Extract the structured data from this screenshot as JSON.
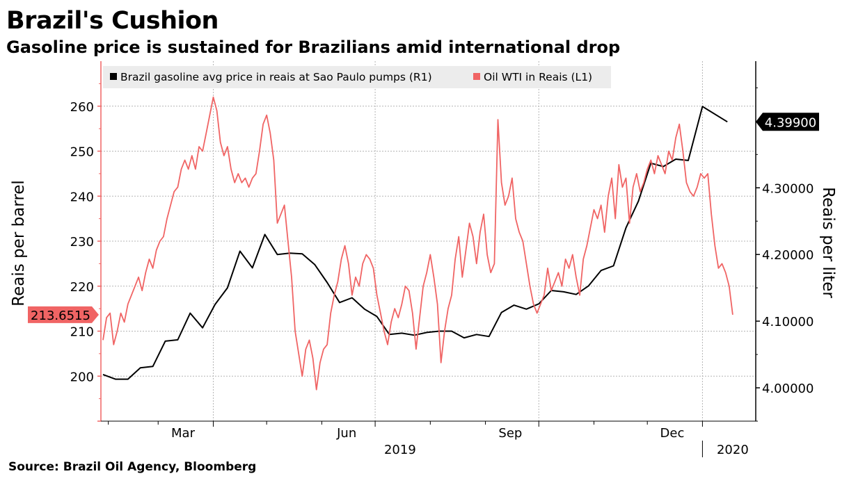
{
  "header": {
    "title": "Brazil's Cushion",
    "subtitle": "Gasoline price is sustained for Brazilians amid international drop"
  },
  "footer": {
    "source": "Source: Brazil Oil Agency, Bloomberg"
  },
  "colors": {
    "gasoline": "#000000",
    "oil": "#f06464",
    "grid": "#b4b4b4"
  },
  "chart_data": {
    "type": "line",
    "x_axis": {
      "month_labels": [
        "Mar",
        "Jun",
        "Sep",
        "Dec"
      ],
      "year_labels": [
        "2019",
        "2020"
      ],
      "range": [
        "2019-01-29",
        "2020-01-29"
      ]
    },
    "left_axis": {
      "label": "Reais per barrel",
      "ticks": [
        200,
        210,
        220,
        230,
        240,
        250,
        260
      ],
      "tick_labels": [
        "200",
        "210",
        "220",
        "230",
        "240",
        "250",
        "260"
      ],
      "range": [
        190,
        270
      ]
    },
    "right_axis": {
      "label": "Reais per liter",
      "ticks": [
        4.0,
        4.1,
        4.2,
        4.3
      ],
      "tick_labels": [
        "4.00000",
        "4.10000",
        "4.20000",
        "4.30000"
      ],
      "range": [
        3.95,
        4.49
      ]
    },
    "grid": true,
    "legend": {
      "position": "top-left",
      "items": [
        {
          "label": "Brazil gasoline avg price in reais at Sao Paulo pumps (R1)",
          "series": "gasoline"
        },
        {
          "label": "Oil WTI in Reais (L1)",
          "series": "oil"
        }
      ]
    },
    "last_value_labels": {
      "gasoline": "4.39900",
      "oil": "213.6515"
    },
    "series": [
      {
        "name": "Brazil gasoline avg price in reais at Sao Paulo pumps (R1)",
        "key": "gasoline",
        "axis": "right",
        "points": [
          [
            "2019-01-29",
            4.02
          ],
          [
            "2019-02-05",
            4.013
          ],
          [
            "2019-02-12",
            4.013
          ],
          [
            "2019-02-19",
            4.03
          ],
          [
            "2019-02-26",
            4.032
          ],
          [
            "2019-03-05",
            4.07
          ],
          [
            "2019-03-12",
            4.072
          ],
          [
            "2019-03-19",
            4.112
          ],
          [
            "2019-03-26",
            4.09
          ],
          [
            "2019-04-02",
            4.125
          ],
          [
            "2019-04-09",
            4.15
          ],
          [
            "2019-04-16",
            4.205
          ],
          [
            "2019-04-23",
            4.18
          ],
          [
            "2019-04-30",
            4.23
          ],
          [
            "2019-05-07",
            4.2
          ],
          [
            "2019-05-14",
            4.202
          ],
          [
            "2019-05-21",
            4.201
          ],
          [
            "2019-05-28",
            4.185
          ],
          [
            "2019-06-04",
            4.158
          ],
          [
            "2019-06-11",
            4.128
          ],
          [
            "2019-06-18",
            4.135
          ],
          [
            "2019-06-25",
            4.118
          ],
          [
            "2019-07-02",
            4.107
          ],
          [
            "2019-07-09",
            4.08
          ],
          [
            "2019-07-16",
            4.082
          ],
          [
            "2019-07-23",
            4.079
          ],
          [
            "2019-07-30",
            4.083
          ],
          [
            "2019-08-06",
            4.085
          ],
          [
            "2019-08-13",
            4.085
          ],
          [
            "2019-08-20",
            4.075
          ],
          [
            "2019-08-27",
            4.08
          ],
          [
            "2019-09-03",
            4.077
          ],
          [
            "2019-09-10",
            4.113
          ],
          [
            "2019-09-17",
            4.124
          ],
          [
            "2019-09-24",
            4.118
          ],
          [
            "2019-10-01",
            4.126
          ],
          [
            "2019-10-08",
            4.146
          ],
          [
            "2019-10-15",
            4.144
          ],
          [
            "2019-10-22",
            4.14
          ],
          [
            "2019-10-29",
            4.153
          ],
          [
            "2019-11-05",
            4.176
          ],
          [
            "2019-11-12",
            4.183
          ],
          [
            "2019-11-19",
            4.24
          ],
          [
            "2019-11-26",
            4.28
          ],
          [
            "2019-12-03",
            4.337
          ],
          [
            "2019-12-10",
            4.332
          ],
          [
            "2019-12-17",
            4.343
          ],
          [
            "2019-12-24",
            4.341
          ],
          [
            "2020-01-01",
            4.422
          ],
          [
            "2020-01-15",
            4.399
          ]
        ]
      },
      {
        "name": "Oil WTI in Reais (L1)",
        "key": "oil",
        "axis": "left",
        "points": [
          [
            "2019-01-29",
            208
          ],
          [
            "2019-01-31",
            213
          ],
          [
            "2019-02-02",
            214
          ],
          [
            "2019-02-04",
            207
          ],
          [
            "2019-02-06",
            210
          ],
          [
            "2019-02-08",
            214
          ],
          [
            "2019-02-10",
            212
          ],
          [
            "2019-02-12",
            216
          ],
          [
            "2019-02-14",
            218
          ],
          [
            "2019-02-16",
            220
          ],
          [
            "2019-02-18",
            222
          ],
          [
            "2019-02-20",
            219
          ],
          [
            "2019-02-22",
            223
          ],
          [
            "2019-02-24",
            226
          ],
          [
            "2019-02-26",
            224
          ],
          [
            "2019-02-28",
            228
          ],
          [
            "2019-03-02",
            230
          ],
          [
            "2019-03-04",
            231
          ],
          [
            "2019-03-06",
            235
          ],
          [
            "2019-03-08",
            238
          ],
          [
            "2019-03-10",
            241
          ],
          [
            "2019-03-12",
            242
          ],
          [
            "2019-03-14",
            246
          ],
          [
            "2019-03-16",
            248
          ],
          [
            "2019-03-18",
            246
          ],
          [
            "2019-03-20",
            249
          ],
          [
            "2019-03-22",
            246
          ],
          [
            "2019-03-24",
            251
          ],
          [
            "2019-03-26",
            250
          ],
          [
            "2019-03-28",
            254
          ],
          [
            "2019-03-30",
            258
          ],
          [
            "2019-04-01",
            262
          ],
          [
            "2019-04-03",
            259
          ],
          [
            "2019-04-05",
            252
          ],
          [
            "2019-04-07",
            249
          ],
          [
            "2019-04-09",
            251
          ],
          [
            "2019-04-11",
            246
          ],
          [
            "2019-04-13",
            243
          ],
          [
            "2019-04-15",
            245
          ],
          [
            "2019-04-17",
            243
          ],
          [
            "2019-04-19",
            244
          ],
          [
            "2019-04-21",
            242
          ],
          [
            "2019-04-23",
            244
          ],
          [
            "2019-04-25",
            245
          ],
          [
            "2019-04-27",
            250
          ],
          [
            "2019-04-29",
            256
          ],
          [
            "2019-05-01",
            258
          ],
          [
            "2019-05-03",
            254
          ],
          [
            "2019-05-05",
            248
          ],
          [
            "2019-05-07",
            234
          ],
          [
            "2019-05-09",
            236
          ],
          [
            "2019-05-11",
            238
          ],
          [
            "2019-05-13",
            230
          ],
          [
            "2019-05-15",
            222
          ],
          [
            "2019-05-17",
            210
          ],
          [
            "2019-05-19",
            205
          ],
          [
            "2019-05-21",
            200
          ],
          [
            "2019-05-23",
            206
          ],
          [
            "2019-05-25",
            208
          ],
          [
            "2019-05-27",
            204
          ],
          [
            "2019-05-29",
            197
          ],
          [
            "2019-05-31",
            203
          ],
          [
            "2019-06-02",
            206
          ],
          [
            "2019-06-04",
            207
          ],
          [
            "2019-06-06",
            214
          ],
          [
            "2019-06-08",
            218
          ],
          [
            "2019-06-10",
            221
          ],
          [
            "2019-06-12",
            226
          ],
          [
            "2019-06-14",
            229
          ],
          [
            "2019-06-16",
            225
          ],
          [
            "2019-06-18",
            218
          ],
          [
            "2019-06-20",
            222
          ],
          [
            "2019-06-22",
            220
          ],
          [
            "2019-06-24",
            225
          ],
          [
            "2019-06-26",
            227
          ],
          [
            "2019-06-28",
            226
          ],
          [
            "2019-06-30",
            224
          ],
          [
            "2019-07-02",
            218
          ],
          [
            "2019-07-04",
            214
          ],
          [
            "2019-07-06",
            210
          ],
          [
            "2019-07-08",
            207
          ],
          [
            "2019-07-10",
            212
          ],
          [
            "2019-07-12",
            215
          ],
          [
            "2019-07-14",
            213
          ],
          [
            "2019-07-16",
            216
          ],
          [
            "2019-07-18",
            220
          ],
          [
            "2019-07-20",
            219
          ],
          [
            "2019-07-22",
            214
          ],
          [
            "2019-07-24",
            206
          ],
          [
            "2019-07-26",
            213
          ],
          [
            "2019-07-28",
            220
          ],
          [
            "2019-07-30",
            223
          ],
          [
            "2019-08-01",
            227
          ],
          [
            "2019-08-03",
            222
          ],
          [
            "2019-08-05",
            216
          ],
          [
            "2019-08-07",
            203
          ],
          [
            "2019-08-09",
            210
          ],
          [
            "2019-08-11",
            215
          ],
          [
            "2019-08-13",
            218
          ],
          [
            "2019-08-15",
            226
          ],
          [
            "2019-08-17",
            231
          ],
          [
            "2019-08-19",
            222
          ],
          [
            "2019-08-21",
            228
          ],
          [
            "2019-08-23",
            234
          ],
          [
            "2019-08-25",
            231
          ],
          [
            "2019-08-27",
            225
          ],
          [
            "2019-08-29",
            232
          ],
          [
            "2019-08-31",
            236
          ],
          [
            "2019-09-02",
            227
          ],
          [
            "2019-09-04",
            223
          ],
          [
            "2019-09-06",
            225
          ],
          [
            "2019-09-08",
            257
          ],
          [
            "2019-09-10",
            243
          ],
          [
            "2019-09-12",
            238
          ],
          [
            "2019-09-14",
            240
          ],
          [
            "2019-09-16",
            244
          ],
          [
            "2019-09-18",
            235
          ],
          [
            "2019-09-20",
            232
          ],
          [
            "2019-09-22",
            230
          ],
          [
            "2019-09-24",
            225
          ],
          [
            "2019-09-26",
            220
          ],
          [
            "2019-09-28",
            216
          ],
          [
            "2019-09-30",
            214
          ],
          [
            "2019-10-02",
            216
          ],
          [
            "2019-10-04",
            218
          ],
          [
            "2019-10-06",
            224
          ],
          [
            "2019-10-08",
            219
          ],
          [
            "2019-10-10",
            221
          ],
          [
            "2019-10-12",
            223
          ],
          [
            "2019-10-14",
            220
          ],
          [
            "2019-10-16",
            226
          ],
          [
            "2019-10-18",
            224
          ],
          [
            "2019-10-20",
            227
          ],
          [
            "2019-10-22",
            222
          ],
          [
            "2019-10-24",
            218
          ],
          [
            "2019-10-26",
            226
          ],
          [
            "2019-10-28",
            229
          ],
          [
            "2019-10-30",
            233
          ],
          [
            "2019-11-01",
            237
          ],
          [
            "2019-11-03",
            235
          ],
          [
            "2019-11-05",
            238
          ],
          [
            "2019-11-07",
            232
          ],
          [
            "2019-11-09",
            240
          ],
          [
            "2019-11-11",
            244
          ],
          [
            "2019-11-13",
            235
          ],
          [
            "2019-11-15",
            247
          ],
          [
            "2019-11-17",
            242
          ],
          [
            "2019-11-19",
            244
          ],
          [
            "2019-11-21",
            234
          ],
          [
            "2019-11-23",
            242
          ],
          [
            "2019-11-25",
            245
          ],
          [
            "2019-11-27",
            241
          ],
          [
            "2019-11-29",
            243
          ],
          [
            "2019-12-01",
            246
          ],
          [
            "2019-12-03",
            248
          ],
          [
            "2019-12-05",
            245
          ],
          [
            "2019-12-07",
            249
          ],
          [
            "2019-12-09",
            247
          ],
          [
            "2019-12-11",
            245
          ],
          [
            "2019-12-13",
            250
          ],
          [
            "2019-12-15",
            248
          ],
          [
            "2019-12-17",
            253
          ],
          [
            "2019-12-19",
            256
          ],
          [
            "2019-12-21",
            250
          ],
          [
            "2019-12-23",
            243
          ],
          [
            "2019-12-25",
            241
          ],
          [
            "2019-12-27",
            240
          ],
          [
            "2019-12-29",
            242
          ],
          [
            "2019-12-31",
            245
          ],
          [
            "2020-01-02",
            244
          ],
          [
            "2020-01-04",
            245
          ],
          [
            "2020-01-06",
            236
          ],
          [
            "2020-01-08",
            229
          ],
          [
            "2020-01-10",
            224
          ],
          [
            "2020-01-12",
            225
          ],
          [
            "2020-01-14",
            223
          ],
          [
            "2020-01-16",
            220
          ],
          [
            "2020-01-18",
            213.65
          ]
        ]
      }
    ]
  }
}
